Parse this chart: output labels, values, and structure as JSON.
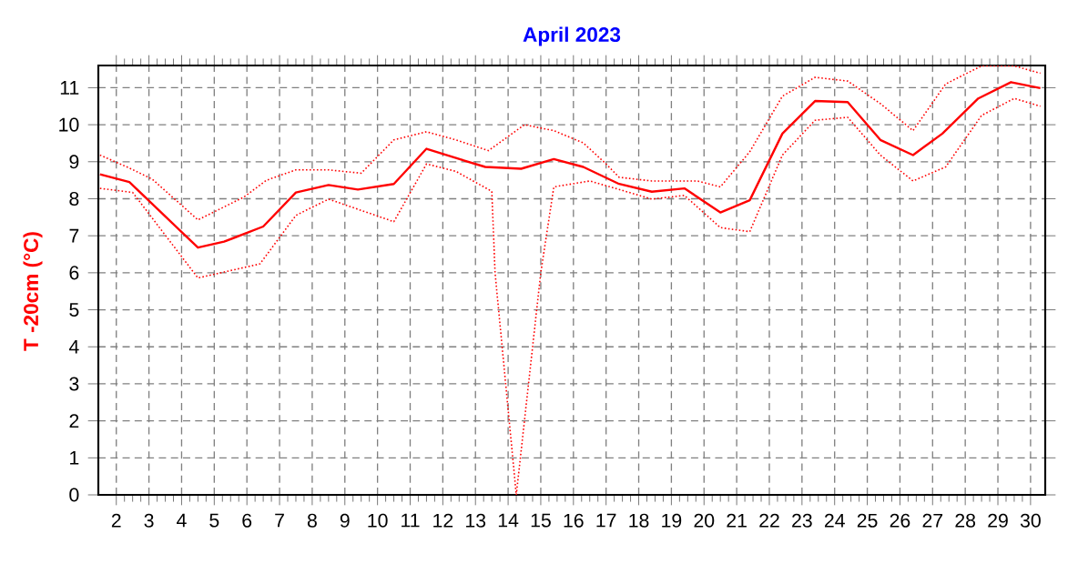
{
  "chart_data": {
    "type": "line",
    "title": "April 2023",
    "ylabel": "T -20cm (°C)",
    "xlim": [
      1.45,
      30.45
    ],
    "ylim": [
      0,
      11.6
    ],
    "xticks": [
      2,
      3,
      4,
      5,
      6,
      7,
      8,
      9,
      10,
      11,
      12,
      13,
      14,
      15,
      16,
      17,
      18,
      19,
      20,
      21,
      22,
      23,
      24,
      25,
      26,
      27,
      28,
      29,
      30
    ],
    "yticks": [
      0,
      1,
      2,
      3,
      4,
      5,
      6,
      7,
      8,
      9,
      10,
      11
    ],
    "grid": true,
    "marker": "none",
    "series": [
      {
        "color": "#ff0000",
        "line_style": "solid",
        "x": [
          1.5,
          2.4,
          4.5,
          5.3,
          6.5,
          7.5,
          8.5,
          9.4,
          10.5,
          11.5,
          12.4,
          13.3,
          14.4,
          15.4,
          16.3,
          17.4,
          18.4,
          19.4,
          20.5,
          21.4,
          22.4,
          23.4,
          24.4,
          25.4,
          26.4,
          27.3,
          28.4,
          29.4,
          30.3
        ],
        "values": [
          8.66,
          8.45,
          6.68,
          6.84,
          7.25,
          8.17,
          8.37,
          8.25,
          8.4,
          9.35,
          9.1,
          8.86,
          8.81,
          9.07,
          8.86,
          8.4,
          8.19,
          8.28,
          7.63,
          7.96,
          9.76,
          10.64,
          10.61,
          9.59,
          9.18,
          9.76,
          10.71,
          11.15,
          10.99
        ]
      },
      {
        "color": "#ff0000",
        "line_style": "dotted",
        "x": [
          1.5,
          2.4,
          3.1,
          4.5,
          5.9,
          6.6,
          7.5,
          8.5,
          9.5,
          10.5,
          11.5,
          12.4,
          13.4,
          14.5,
          15.4,
          16.3,
          17.0,
          17.4,
          18.4,
          19.8,
          20.5,
          21.4,
          22.4,
          23.4,
          24.4,
          25.4,
          26.4,
          27.4,
          28.5,
          29.5,
          30.3
        ],
        "values": [
          9.18,
          8.83,
          8.53,
          7.43,
          8.04,
          8.5,
          8.78,
          8.78,
          8.69,
          9.59,
          9.81,
          9.59,
          9.3,
          10.0,
          9.84,
          9.51,
          8.94,
          8.58,
          8.48,
          8.48,
          8.32,
          9.27,
          10.77,
          11.28,
          11.18,
          10.57,
          9.84,
          11.1,
          11.59,
          11.59,
          11.39
        ]
      },
      {
        "color": "#ff0000",
        "line_style": "dotted",
        "x": [
          1.5,
          2.5,
          4.5,
          6.4,
          7.5,
          8.5,
          10.5,
          11.5,
          12.4,
          13.5,
          13.6,
          14.25,
          15.0,
          15.4,
          16.5,
          17.4,
          18.4,
          19.4,
          20.5,
          21.4,
          22.4,
          23.4,
          24.4,
          25.4,
          26.4,
          27.4,
          28.5,
          29.5,
          30.3
        ],
        "values": [
          8.28,
          8.17,
          5.86,
          6.24,
          7.55,
          7.99,
          7.38,
          8.94,
          8.74,
          8.2,
          6.0,
          0,
          6.0,
          8.32,
          8.48,
          8.25,
          7.99,
          8.09,
          7.22,
          7.11,
          9.18,
          10.12,
          10.2,
          9.18,
          8.48,
          8.86,
          10.25,
          10.71,
          10.5
        ]
      }
    ]
  }
}
